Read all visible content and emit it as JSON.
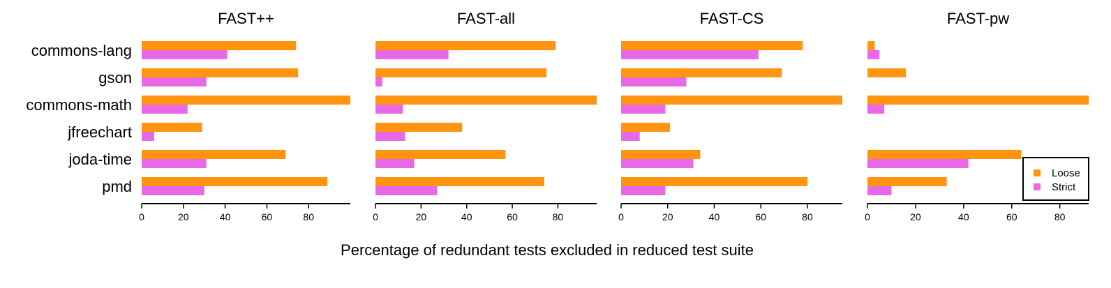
{
  "chart_data": {
    "type": "bar",
    "orientation": "horizontal",
    "facet": "panels",
    "xlabel": "Percentage of redundant tests excluded in reduced test suite",
    "categories": [
      "commons-lang",
      "gson",
      "commons-math",
      "jfreechart",
      "joda-time",
      "pmd"
    ],
    "xticks": [
      0,
      20,
      40,
      60,
      80
    ],
    "legend": {
      "placement": "bottom-right of last panel",
      "entries": [
        {
          "label": "Loose",
          "color": "#FF9410"
        },
        {
          "label": "Strict",
          "color": "#E868E8"
        }
      ]
    },
    "colors": {
      "Loose": "#FF9410",
      "Strict": "#E868E8"
    },
    "panels": [
      {
        "title": "FAST++",
        "xlim": [
          0,
          100
        ],
        "series": [
          {
            "name": "Loose",
            "values": [
              74,
              75,
              100,
              29,
              69,
              89
            ]
          },
          {
            "name": "Strict",
            "values": [
              41,
              31,
              22,
              6,
              31,
              30
            ]
          }
        ]
      },
      {
        "title": "FAST-all",
        "xlim": [
          0,
          97
        ],
        "series": [
          {
            "name": "Loose",
            "values": [
              79,
              75,
              97,
              38,
              57,
              74
            ]
          },
          {
            "name": "Strict",
            "values": [
              32,
              3,
              12,
              13,
              17,
              27
            ]
          }
        ]
      },
      {
        "title": "FAST-CS",
        "xlim": [
          0,
          95
        ],
        "series": [
          {
            "name": "Loose",
            "values": [
              78,
              69,
              95,
              21,
              34,
              80
            ]
          },
          {
            "name": "Strict",
            "values": [
              59,
              28,
              19,
              8,
              31,
              19
            ]
          }
        ]
      },
      {
        "title": "FAST-pw",
        "xlim": [
          0,
          92
        ],
        "series": [
          {
            "name": "Loose",
            "values": [
              3,
              16,
              92,
              0,
              64,
              33
            ]
          },
          {
            "name": "Strict",
            "values": [
              5,
              0,
              7,
              0,
              42,
              10
            ]
          }
        ]
      }
    ]
  }
}
